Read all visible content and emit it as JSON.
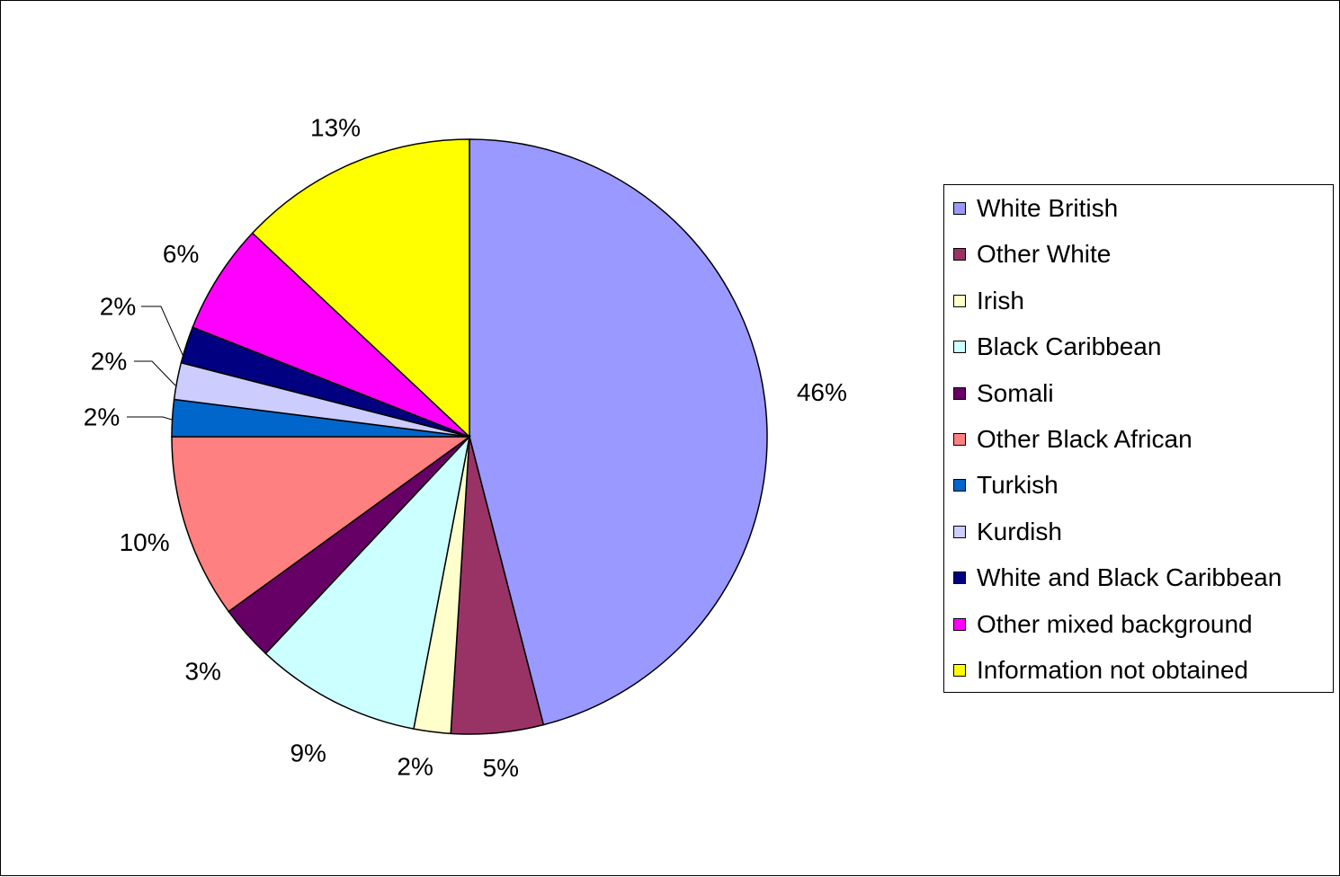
{
  "chart_data": {
    "type": "pie",
    "title": "",
    "legend_position": "right",
    "start_angle_deg": 0,
    "direction": "clockwise",
    "slices": [
      {
        "name": "White British",
        "value": 46,
        "label": "46%",
        "color": "#9999FF"
      },
      {
        "name": "Other White",
        "value": 5,
        "label": "5%",
        "color": "#993366"
      },
      {
        "name": "Irish",
        "value": 2,
        "label": "2%",
        "color": "#FFFFCC"
      },
      {
        "name": "Black Caribbean",
        "value": 9,
        "label": "9%",
        "color": "#CCFFFF"
      },
      {
        "name": "Somali",
        "value": 3,
        "label": "3%",
        "color": "#660066"
      },
      {
        "name": "Other Black African",
        "value": 10,
        "label": "10%",
        "color": "#FF8080"
      },
      {
        "name": "Turkish",
        "value": 2,
        "label": "2%",
        "color": "#0066CC"
      },
      {
        "name": "Kurdish",
        "value": 2,
        "label": "2%",
        "color": "#CCCCFF"
      },
      {
        "name": "White and Black Caribbean",
        "value": 2,
        "label": "2%",
        "color": "#000080"
      },
      {
        "name": "Other mixed background",
        "value": 6,
        "label": "6%",
        "color": "#FF00FF"
      },
      {
        "name": "Information not obtained",
        "value": 13,
        "label": "13%",
        "color": "#FFFF00"
      }
    ]
  }
}
